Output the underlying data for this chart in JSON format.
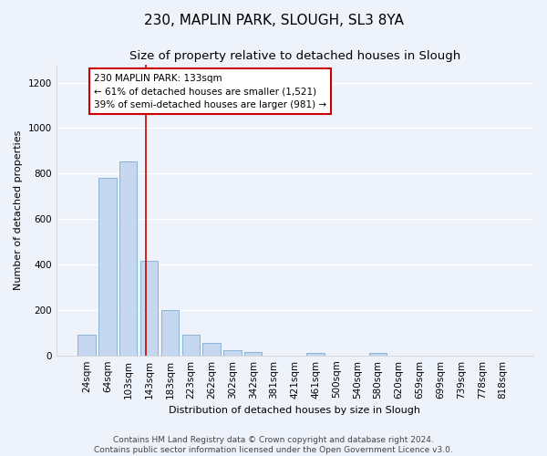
{
  "title_line1": "230, MAPLIN PARK, SLOUGH, SL3 8YA",
  "title_line2": "Size of property relative to detached houses in Slough",
  "xlabel": "Distribution of detached houses by size in Slough",
  "ylabel": "Number of detached properties",
  "footer_line1": "Contains HM Land Registry data © Crown copyright and database right 2024.",
  "footer_line2": "Contains public sector information licensed under the Open Government Licence v3.0.",
  "categories": [
    "24sqm",
    "64sqm",
    "103sqm",
    "143sqm",
    "183sqm",
    "223sqm",
    "262sqm",
    "302sqm",
    "342sqm",
    "381sqm",
    "421sqm",
    "461sqm",
    "500sqm",
    "540sqm",
    "580sqm",
    "620sqm",
    "659sqm",
    "699sqm",
    "739sqm",
    "778sqm",
    "818sqm"
  ],
  "values": [
    90,
    780,
    855,
    415,
    200,
    90,
    55,
    22,
    15,
    0,
    0,
    12,
    0,
    0,
    12,
    0,
    0,
    0,
    0,
    0,
    0
  ],
  "bar_color": "#c5d8f0",
  "bar_edge_color": "#7aaad4",
  "vline_x": 2.85,
  "vline_color": "#cc0000",
  "annotation_box_text": "230 MAPLIN PARK: 133sqm\n← 61% of detached houses are smaller (1,521)\n39% of semi-detached houses are larger (981) →",
  "box_edge_color": "#cc0000",
  "box_face_color": "#ffffff",
  "ylim": [
    0,
    1280
  ],
  "yticks": [
    0,
    200,
    400,
    600,
    800,
    1000,
    1200
  ],
  "background_color": "#eef2fa",
  "grid_color": "#ffffff",
  "title_fontsize": 11,
  "subtitle_fontsize": 9.5,
  "axis_label_fontsize": 8,
  "tick_fontsize": 7.5,
  "footer_fontsize": 6.5,
  "annotation_fontsize": 7.5
}
